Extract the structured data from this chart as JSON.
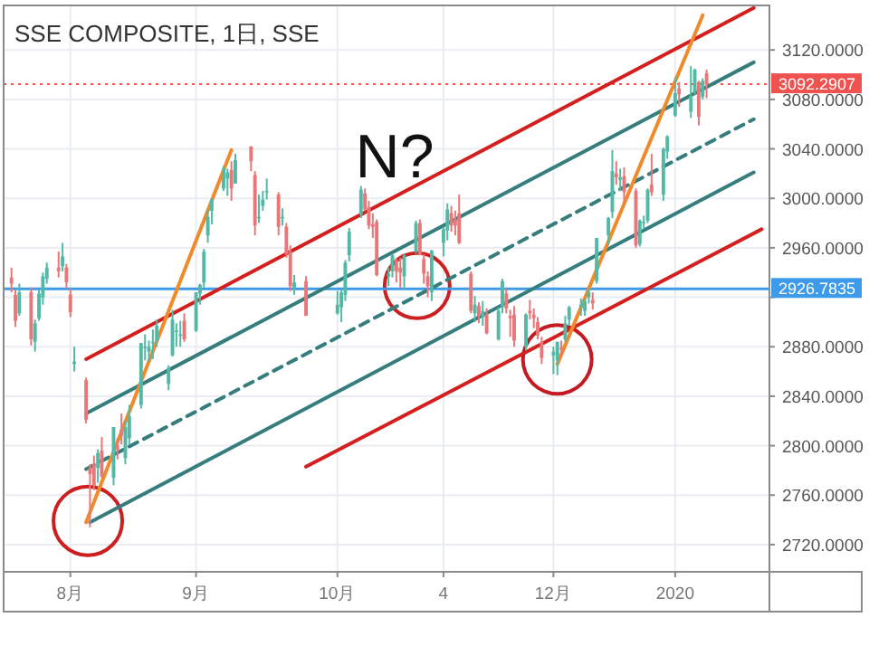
{
  "chart_data": {
    "type": "candlestick",
    "title": "SSE COMPOSITE, 1日, SSE",
    "annotations": [
      "N?"
    ],
    "grid": true,
    "x": [
      "2019-07-17",
      "2019-07-18",
      "2019-07-19",
      "2019-07-22",
      "2019-07-23",
      "2019-07-24",
      "2019-07-25",
      "2019-07-26",
      "2019-07-29",
      "2019-07-30",
      "2019-07-31",
      "2019-08-01",
      "2019-08-02",
      "2019-08-05",
      "2019-08-06",
      "2019-08-07",
      "2019-08-08",
      "2019-08-09",
      "2019-08-12",
      "2019-08-13",
      "2019-08-14",
      "2019-08-15",
      "2019-08-16",
      "2019-08-19",
      "2019-08-20",
      "2019-08-21",
      "2019-08-22",
      "2019-08-23",
      "2019-08-26",
      "2019-08-27",
      "2019-08-28",
      "2019-08-29",
      "2019-08-30",
      "2019-09-02",
      "2019-09-03",
      "2019-09-04",
      "2019-09-05",
      "2019-09-06",
      "2019-09-09",
      "2019-09-10",
      "2019-09-11",
      "2019-09-12",
      "2019-09-16",
      "2019-09-17",
      "2019-09-18",
      "2019-09-19",
      "2019-09-20",
      "2019-09-23",
      "2019-09-24",
      "2019-09-25",
      "2019-09-26",
      "2019-09-27",
      "2019-09-30",
      "2019-10-08",
      "2019-10-09",
      "2019-10-10",
      "2019-10-11",
      "2019-10-14",
      "2019-10-15",
      "2019-10-16",
      "2019-10-17",
      "2019-10-18",
      "2019-10-21",
      "2019-10-22",
      "2019-10-23",
      "2019-10-24",
      "2019-10-25",
      "2019-10-28",
      "2019-10-29",
      "2019-10-30",
      "2019-10-31",
      "2019-11-01",
      "2019-11-04",
      "2019-11-05",
      "2019-11-06",
      "2019-11-07",
      "2019-11-08",
      "2019-11-11",
      "2019-11-12",
      "2019-11-13",
      "2019-11-14",
      "2019-11-15",
      "2019-11-18",
      "2019-11-19",
      "2019-11-20",
      "2019-11-21",
      "2019-11-22",
      "2019-11-25",
      "2019-11-26",
      "2019-11-27",
      "2019-11-28",
      "2019-11-29",
      "2019-12-02",
      "2019-12-03",
      "2019-12-04",
      "2019-12-05",
      "2019-12-06",
      "2019-12-09",
      "2019-12-10",
      "2019-12-11",
      "2019-12-12",
      "2019-12-13",
      "2019-12-16",
      "2019-12-17",
      "2019-12-18",
      "2019-12-19",
      "2019-12-20",
      "2019-12-23",
      "2019-12-24",
      "2019-12-25",
      "2019-12-26",
      "2019-12-27",
      "2019-12-30",
      "2019-12-31",
      "2020-01-02",
      "2020-01-03",
      "2020-01-06",
      "2020-01-07",
      "2020-01-08",
      "2020-01-09",
      "2020-01-10"
    ],
    "ohlc": [
      [
        2936,
        2944,
        2924,
        2931
      ],
      [
        2922,
        2926,
        2896,
        2901
      ],
      [
        2907,
        2931,
        2905,
        2924
      ],
      [
        2924,
        2928,
        2881,
        2886
      ],
      [
        2884,
        2902,
        2876,
        2899
      ],
      [
        2903,
        2926,
        2901,
        2923
      ],
      [
        2920,
        2940,
        2914,
        2937
      ],
      [
        2935,
        2948,
        2931,
        2944
      ],
      [
        2944,
        2957,
        2936,
        2941
      ],
      [
        2945,
        2964,
        2941,
        2953
      ],
      [
        2944,
        2947,
        2927,
        2932
      ],
      [
        2922,
        2927,
        2904,
        2908
      ],
      [
        2866,
        2880,
        2860,
        2868
      ],
      [
        2853,
        2855,
        2818,
        2821
      ],
      [
        2782,
        2785,
        2734,
        2777
      ],
      [
        2785,
        2792,
        2764,
        2768
      ],
      [
        2782,
        2797,
        2770,
        2794
      ],
      [
        2796,
        2807,
        2774,
        2775
      ],
      [
        2774,
        2815,
        2768,
        2815
      ],
      [
        2800,
        2806,
        2789,
        2797
      ],
      [
        2813,
        2826,
        2801,
        2808
      ],
      [
        2790,
        2820,
        2785,
        2815
      ],
      [
        2806,
        2833,
        2801,
        2824
      ],
      [
        2833,
        2883,
        2830,
        2883
      ],
      [
        2880,
        2890,
        2869,
        2880
      ],
      [
        2876,
        2885,
        2868,
        2880
      ],
      [
        2883,
        2894,
        2870,
        2884
      ],
      [
        2885,
        2902,
        2880,
        2897
      ],
      [
        2850,
        2865,
        2845,
        2863
      ],
      [
        2873,
        2910,
        2872,
        2902
      ],
      [
        2893,
        2899,
        2880,
        2893
      ],
      [
        2890,
        2901,
        2880,
        2890
      ],
      [
        2901,
        2907,
        2884,
        2886
      ],
      [
        2893,
        2924,
        2892,
        2924
      ],
      [
        2923,
        2931,
        2914,
        2930
      ],
      [
        2932,
        2959,
        2928,
        2957
      ],
      [
        2970,
        2991,
        2964,
        2985
      ],
      [
        2990,
        3000,
        2979,
        2999
      ],
      [
        3008,
        3026,
        3006,
        3024
      ],
      [
        3016,
        3024,
        3002,
        3021
      ],
      [
        3023,
        3030,
        2998,
        3008
      ],
      [
        3012,
        3036,
        3012,
        3031
      ],
      [
        3042,
        3042,
        3022,
        3030
      ],
      [
        3019,
        3022,
        2970,
        2978
      ],
      [
        2984,
        3003,
        2980,
        2985
      ],
      [
        2994,
        3006,
        2990,
        2999
      ],
      [
        3005,
        3016,
        2999,
        3006
      ],
      [
        3003,
        3005,
        2970,
        2977
      ],
      [
        2985,
        2992,
        2978,
        2985
      ],
      [
        2977,
        2980,
        2952,
        2955
      ],
      [
        2957,
        2962,
        2925,
        2929
      ],
      [
        2928,
        2938,
        2922,
        2932
      ],
      [
        2933,
        2937,
        2905,
        2905
      ],
      [
        2907,
        2925,
        2906,
        2914
      ],
      [
        2912,
        2926,
        2900,
        2924
      ],
      [
        2922,
        2950,
        2917,
        2948
      ],
      [
        2954,
        2976,
        2949,
        2973
      ],
      [
        2987,
        3010,
        2984,
        3007
      ],
      [
        3004,
        3008,
        2990,
        2991
      ],
      [
        2993,
        2998,
        2975,
        2978
      ],
      [
        2979,
        2988,
        2968,
        2977
      ],
      [
        2981,
        2983,
        2937,
        2938
      ],
      [
        2937,
        2944,
        2929,
        2939
      ],
      [
        2941,
        2955,
        2936,
        2954
      ],
      [
        2950,
        2952,
        2932,
        2941
      ],
      [
        2944,
        2952,
        2928,
        2940
      ],
      [
        2937,
        2955,
        2926,
        2954
      ],
      [
        2957,
        2982,
        2955,
        2980
      ],
      [
        2980,
        2983,
        2954,
        2954
      ],
      [
        2951,
        2955,
        2931,
        2939
      ],
      [
        2937,
        2941,
        2920,
        2929
      ],
      [
        2924,
        2958,
        2917,
        2958
      ],
      [
        2964,
        2977,
        2953,
        2975
      ],
      [
        2974,
        2996,
        2966,
        2991
      ],
      [
        2988,
        2994,
        2973,
        2978
      ],
      [
        2983,
        2990,
        2970,
        2978
      ],
      [
        2988,
        3003,
        2963,
        2964
      ],
      [
        2939,
        2941,
        2907,
        2909
      ],
      [
        2907,
        2921,
        2900,
        2914
      ],
      [
        2913,
        2916,
        2899,
        2905
      ],
      [
        2904,
        2917,
        2897,
        2909
      ],
      [
        2906,
        2911,
        2890,
        2891
      ],
      [
        2886,
        2912,
        2885,
        2909
      ],
      [
        2912,
        2935,
        2907,
        2933
      ],
      [
        2923,
        2927,
        2907,
        2911
      ],
      [
        2905,
        2910,
        2888,
        2903
      ],
      [
        2906,
        2913,
        2880,
        2885
      ],
      [
        2880,
        2907,
        2877,
        2906
      ],
      [
        2909,
        2918,
        2902,
        2907
      ],
      [
        2906,
        2911,
        2895,
        2903
      ],
      [
        2900,
        2904,
        2886,
        2889
      ],
      [
        2884,
        2888,
        2866,
        2871
      ],
      [
        2873,
        2880,
        2858,
        2876
      ],
      [
        2869,
        2884,
        2857,
        2884
      ],
      [
        2879,
        2885,
        2873,
        2878
      ],
      [
        2886,
        2905,
        2884,
        2899
      ],
      [
        2902,
        2913,
        2897,
        2912
      ],
      [
        2913,
        2919,
        2905,
        2914
      ],
      [
        2909,
        2919,
        2905,
        2917
      ],
      [
        2920,
        2927,
        2915,
        2924
      ],
      [
        2918,
        2924,
        2910,
        2915
      ],
      [
        2933,
        2968,
        2931,
        2968
      ],
      [
        2970,
        2985,
        2962,
        2984
      ],
      [
        2989,
        3039,
        2984,
        3022
      ],
      [
        3020,
        3030,
        3011,
        3017
      ],
      [
        3015,
        3024,
        3006,
        3017
      ],
      [
        3018,
        3025,
        2996,
        3005
      ],
      [
        3006,
        3008,
        2960,
        2962
      ],
      [
        2963,
        2983,
        2961,
        2982
      ],
      [
        2981,
        2986,
        2976,
        2981
      ],
      [
        2982,
        3008,
        2980,
        3007
      ],
      [
        3011,
        3036,
        3002,
        3005
      ],
      [
        3003,
        3041,
        2998,
        3040
      ],
      [
        3038,
        3051,
        3032,
        3050
      ],
      [
        3067,
        3098,
        3066,
        3085
      ],
      [
        3089,
        3094,
        3074,
        3084
      ],
      [
        3070,
        3107,
        3065,
        3083
      ],
      [
        3086,
        3105,
        3084,
        3104
      ],
      [
        3094,
        3095,
        3059,
        3066
      ],
      [
        3082,
        3097,
        3080,
        3095
      ],
      [
        3101,
        3104,
        3081,
        3092
      ]
    ],
    "xlim": [
      "2019-07-15",
      "2020-01-26"
    ],
    "xticks": [
      {
        "value": "2019-08-01",
        "label": "8月"
      },
      {
        "value": "2019-09-02",
        "label": "9月"
      },
      {
        "value": "2019-10-08",
        "label": "10月"
      },
      {
        "value": "2019-11-04",
        "label": "4"
      },
      {
        "value": "2019-12-02",
        "label": "12月"
      },
      {
        "value": "2020-01-02",
        "label": "2020"
      }
    ],
    "ylim": [
      2698,
      3156
    ],
    "yticks": [
      {
        "value": 2720,
        "label": "2720.0000"
      },
      {
        "value": 2760,
        "label": "2760.0000"
      },
      {
        "value": 2800,
        "label": "2800.0000"
      },
      {
        "value": 2840,
        "label": "2840.0000"
      },
      {
        "value": 2880,
        "label": "2880.0000"
      },
      {
        "value": 2920,
        "label": null
      },
      {
        "value": 2960,
        "label": "2960.0000"
      },
      {
        "value": 3000,
        "label": "3000.0000"
      },
      {
        "value": 3040,
        "label": "3040.0000"
      },
      {
        "value": 3080,
        "label": "3080.0000"
      },
      {
        "value": 3120,
        "label": "3120.0000"
      }
    ],
    "ref_lines": [
      {
        "axis": "y",
        "value": 3092.2907,
        "label": "3092.2907",
        "color": "#ef5350",
        "line_style": "dotted"
      },
      {
        "axis": "y",
        "value": 2926.7835,
        "label": "2926.7835",
        "color": "#3d9be9",
        "line_style": "solid"
      }
    ],
    "series": [
      {
        "type": "line",
        "color": "#d41f1f",
        "line_style": "solid",
        "x": [
          "2019-08-05",
          "2020-01-22"
        ],
        "values": [
          2870,
          3154
        ]
      },
      {
        "type": "line",
        "color": "#367d7d",
        "line_style": "solid",
        "x": [
          "2019-08-05",
          "2020-01-22"
        ],
        "values": [
          2826,
          3110
        ]
      },
      {
        "type": "line",
        "color": "#367d7d",
        "line_style": "dashed",
        "x": [
          "2019-08-05",
          "2020-01-22"
        ],
        "values": [
          2781,
          3064
        ]
      },
      {
        "type": "line",
        "color": "#367d7d",
        "line_style": "solid",
        "x": [
          "2019-08-06",
          "2020-01-22"
        ],
        "values": [
          2738,
          3021
        ]
      },
      {
        "type": "line",
        "color": "#d41f1f",
        "line_style": "solid",
        "x": [
          "2019-09-30",
          "2020-01-24"
        ],
        "values": [
          2783,
          2975
        ]
      },
      {
        "type": "line",
        "color": "#f08a2a",
        "line_style": "solid",
        "x": [
          "2019-08-05",
          "2019-09-11"
        ],
        "values": [
          2738,
          3039
        ]
      },
      {
        "type": "line",
        "color": "#f08a2a",
        "line_style": "solid",
        "x": [
          "2019-12-03",
          "2020-01-09"
        ],
        "values": [
          2866,
          3148
        ]
      }
    ]
  }
}
